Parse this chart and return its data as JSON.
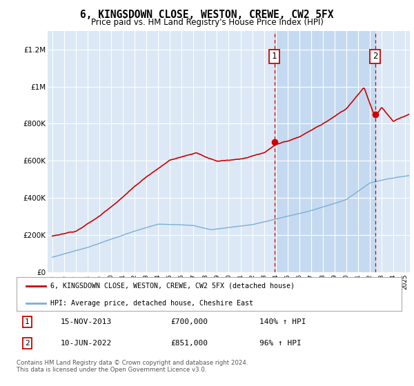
{
  "title": "6, KINGSDOWN CLOSE, WESTON, CREWE, CW2 5FX",
  "subtitle": "Price paid vs. HM Land Registry's House Price Index (HPI)",
  "background_color": "#ffffff",
  "plot_bg_color": "#dce8f5",
  "shade_region_color": "#c5daf0",
  "grid_color": "#ffffff",
  "red_line_color": "#cc0000",
  "blue_line_color": "#7aafd4",
  "sale1_date_num": 2013.88,
  "sale1_price": 700000,
  "sale2_date_num": 2022.44,
  "sale2_price": 851000,
  "legend_line1": "6, KINGSDOWN CLOSE, WESTON, CREWE, CW2 5FX (detached house)",
  "legend_line2": "HPI: Average price, detached house, Cheshire East",
  "table_row1": [
    "1",
    "15-NOV-2013",
    "£700,000",
    "140% ↑ HPI"
  ],
  "table_row2": [
    "2",
    "10-JUN-2022",
    "£851,000",
    "96% ↑ HPI"
  ],
  "footnote": "Contains HM Land Registry data © Crown copyright and database right 2024.\nThis data is licensed under the Open Government Licence v3.0.",
  "ylim": [
    0,
    1300000
  ],
  "xlim_start": 1994.6,
  "xlim_end": 2025.4,
  "yticks": [
    0,
    200000,
    400000,
    600000,
    800000,
    1000000,
    1200000
  ],
  "ytick_labels": [
    "£0",
    "£200K",
    "£400K",
    "£600K",
    "£800K",
    "£1M",
    "£1.2M"
  ],
  "xticks": [
    1995,
    1996,
    1997,
    1998,
    1999,
    2000,
    2001,
    2002,
    2003,
    2004,
    2005,
    2006,
    2007,
    2008,
    2009,
    2010,
    2011,
    2012,
    2013,
    2014,
    2015,
    2016,
    2017,
    2018,
    2019,
    2020,
    2021,
    2022,
    2023,
    2024,
    2025
  ]
}
